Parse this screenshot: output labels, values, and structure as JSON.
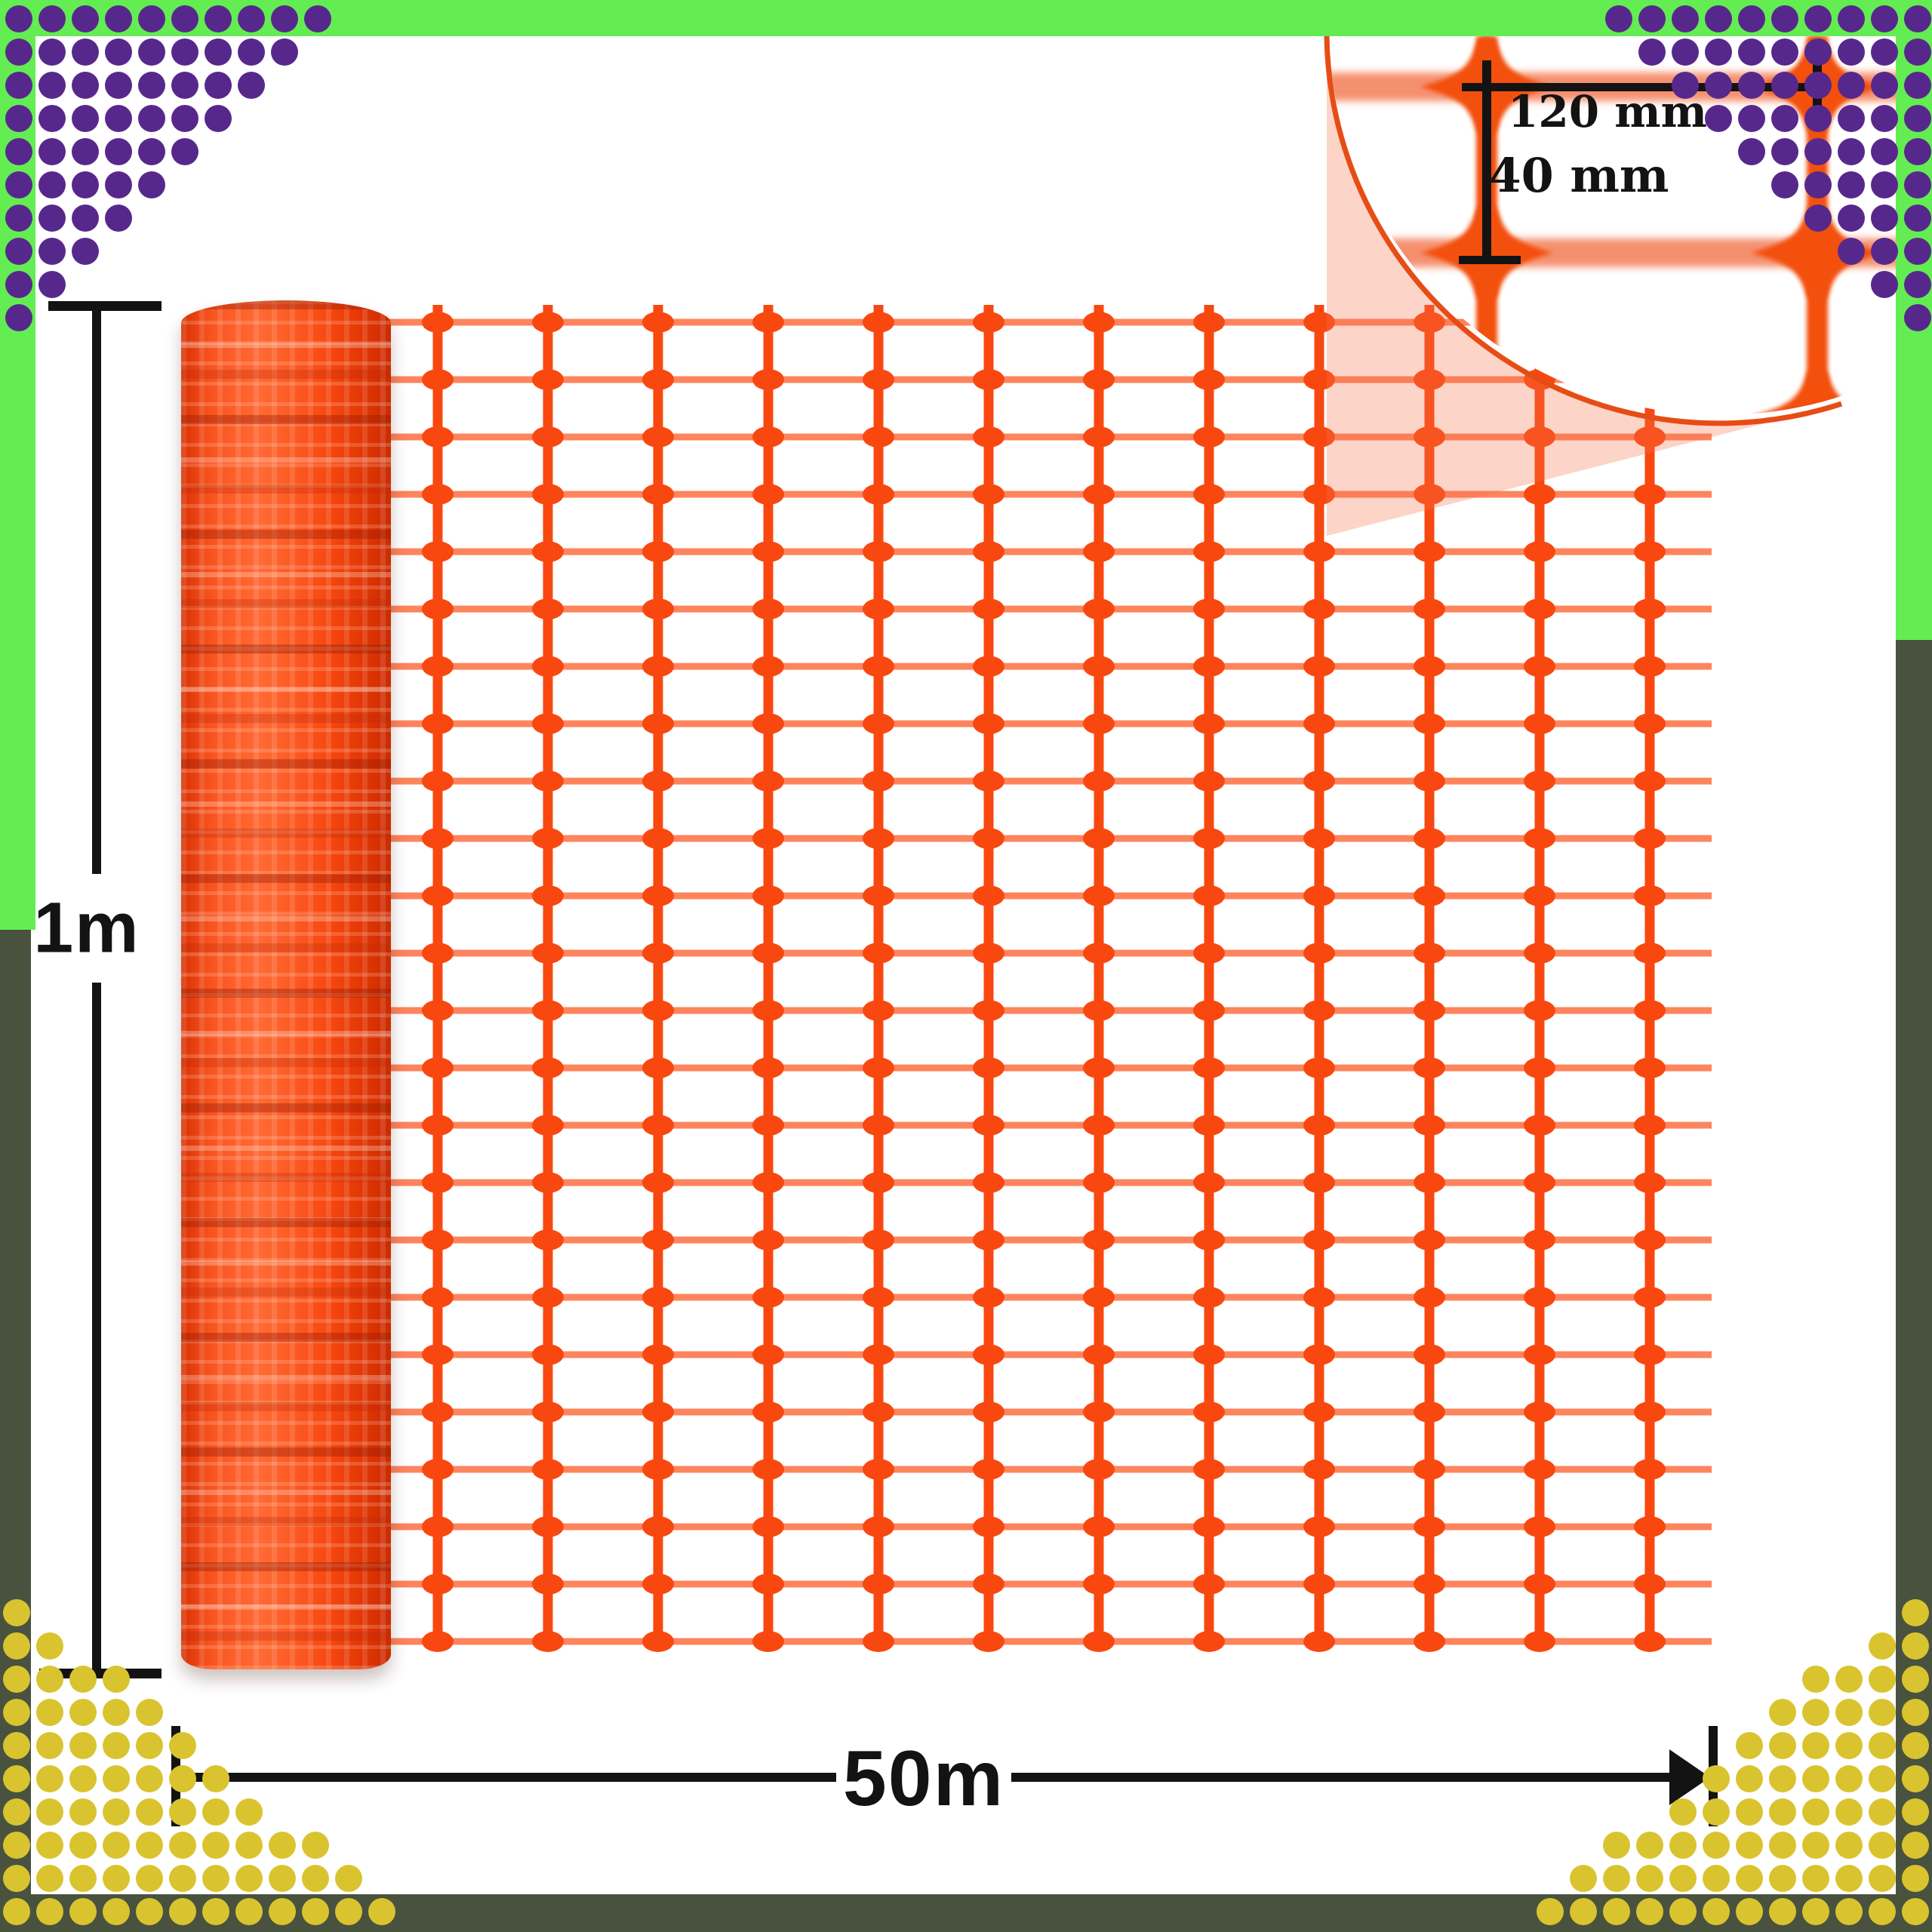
{
  "page": {
    "type": "product-dimension-diagram",
    "subject": "orange plastic safety barrier mesh fencing roll"
  },
  "annotations": {
    "roll_height": "1m",
    "roll_length": "50m",
    "mesh_cell_width": "120 mm",
    "mesh_cell_height": "40 mm"
  },
  "palette": {
    "green": "#63ED53",
    "olive": "#49523F",
    "purple": "#57288C",
    "yellow": "#D9C42F",
    "mesh_orange": "#F84810",
    "mesh_salmon": "#FD7E55",
    "magnifier_wire": "#F3500E",
    "magnifier_salmon": "#F5906E",
    "pale_overlay": "rgba(247,112,74,0.30)",
    "arc_stroke": "#E64D15",
    "ink": "#131313",
    "maroon": "#3E1008",
    "white": "#FFFFFF"
  },
  "icons": [
    {
      "name": "barrier-mesh-roll-icon",
      "shape": "orange textured cylinder"
    },
    {
      "name": "mesh-grid-icon",
      "shape": "orange rounded-cell net pattern"
    },
    {
      "name": "magnifier-circle-icon",
      "shape": "large white circle inset with zoomed mesh"
    },
    {
      "name": "dimension-arrow-icon",
      "shape": "black triangle arrowhead"
    },
    {
      "name": "corner-dots-icon",
      "shape": "triangular halftone dot clusters"
    }
  ]
}
